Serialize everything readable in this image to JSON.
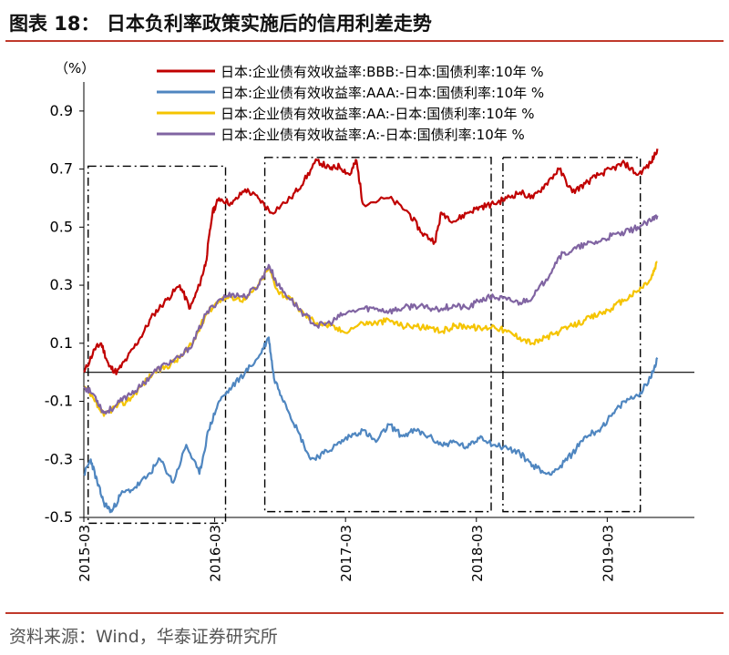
{
  "header": {
    "title": "图表 18：  日本负利率政策实施后的信用利差走势"
  },
  "footer": {
    "source": "资料来源：Wind，华泰证券研究所"
  },
  "colors": {
    "bbb": "#c00000",
    "aaa": "#4f86c0",
    "aa": "#f5c400",
    "a": "#8064a2",
    "rule": "#c0392b"
  },
  "chart_data": {
    "type": "line",
    "ylabel": "（%）",
    "ylim": [
      -0.5,
      1.0
    ],
    "yticks": [
      0.9,
      0.7,
      0.5,
      0.3,
      0.1,
      -0.1,
      -0.3,
      -0.5
    ],
    "ytick_labels": [
      "0.9",
      "0.7",
      "0.5",
      "0.3",
      "0.1",
      "-0.1",
      "-0.3",
      "-0.5"
    ],
    "xlim": [
      2015.167,
      2019.833
    ],
    "xticks": [
      2015.167,
      2016.167,
      2017.167,
      2018.167,
      2019.167
    ],
    "xtick_labels": [
      "2015-03",
      "2016-03",
      "2017-03",
      "2018-03",
      "2019-03"
    ],
    "zero_line": 0,
    "highlight_periods": [
      {
        "x0": 2015.2,
        "x1": 2016.25,
        "y0": -0.52,
        "y1": 0.71
      },
      {
        "x0": 2016.55,
        "x1": 2018.28,
        "y0": -0.48,
        "y1": 0.74
      },
      {
        "x0": 2018.37,
        "x1": 2019.42,
        "y0": -0.48,
        "y1": 0.74
      }
    ],
    "series": [
      {
        "name": "日本:企业债有效收益率:BBB:-日本:国债利率:10年 %",
        "key": "bbb",
        "x": [
          2015.17,
          2015.25,
          2015.3,
          2015.36,
          2015.42,
          2015.5,
          2015.6,
          2015.7,
          2015.8,
          2015.9,
          2015.98,
          2016.05,
          2016.1,
          2016.15,
          2016.2,
          2016.3,
          2016.4,
          2016.5,
          2016.6,
          2016.75,
          2016.85,
          2016.95,
          2017.05,
          2017.12,
          2017.2,
          2017.25,
          2017.3,
          2017.5,
          2017.65,
          2017.75,
          2017.85,
          2017.9,
          2018.0,
          2018.1,
          2018.2,
          2018.3,
          2018.4,
          2018.5,
          2018.6,
          2018.7,
          2018.8,
          2018.9,
          2019.0,
          2019.1,
          2019.2,
          2019.3,
          2019.4,
          2019.5,
          2019.55
        ],
        "values": [
          0.0,
          0.08,
          0.1,
          0.02,
          0.0,
          0.05,
          0.12,
          0.2,
          0.25,
          0.3,
          0.22,
          0.3,
          0.38,
          0.55,
          0.6,
          0.58,
          0.63,
          0.6,
          0.55,
          0.6,
          0.66,
          0.73,
          0.7,
          0.71,
          0.68,
          0.73,
          0.58,
          0.6,
          0.55,
          0.48,
          0.45,
          0.55,
          0.52,
          0.55,
          0.57,
          0.58,
          0.6,
          0.62,
          0.6,
          0.65,
          0.7,
          0.62,
          0.65,
          0.68,
          0.7,
          0.72,
          0.68,
          0.72,
          0.77
        ]
      },
      {
        "name": "日本:企业债有效收益率:AAA:-日本:国债利率:10年 %",
        "key": "aaa",
        "x": [
          2015.17,
          2015.22,
          2015.27,
          2015.32,
          2015.38,
          2015.45,
          2015.55,
          2015.65,
          2015.75,
          2015.85,
          2015.95,
          2016.05,
          2016.12,
          2016.2,
          2016.3,
          2016.4,
          2016.5,
          2016.58,
          2016.62,
          2016.7,
          2016.8,
          2016.9,
          2017.0,
          2017.1,
          2017.2,
          2017.3,
          2017.4,
          2017.5,
          2017.6,
          2017.7,
          2017.8,
          2017.9,
          2018.0,
          2018.1,
          2018.2,
          2018.3,
          2018.4,
          2018.5,
          2018.6,
          2018.7,
          2018.8,
          2018.9,
          2019.0,
          2019.1,
          2019.2,
          2019.3,
          2019.4,
          2019.5,
          2019.55
        ],
        "values": [
          -0.35,
          -0.3,
          -0.38,
          -0.45,
          -0.48,
          -0.42,
          -0.4,
          -0.36,
          -0.3,
          -0.38,
          -0.25,
          -0.35,
          -0.2,
          -0.1,
          -0.05,
          0.0,
          0.05,
          0.12,
          -0.02,
          -0.1,
          -0.2,
          -0.3,
          -0.28,
          -0.25,
          -0.22,
          -0.2,
          -0.24,
          -0.18,
          -0.22,
          -0.2,
          -0.22,
          -0.25,
          -0.24,
          -0.26,
          -0.22,
          -0.25,
          -0.26,
          -0.28,
          -0.32,
          -0.35,
          -0.33,
          -0.28,
          -0.22,
          -0.2,
          -0.15,
          -0.1,
          -0.08,
          -0.02,
          0.05
        ]
      },
      {
        "name": "日本:企业债有效收益率:AA:-日本:国债利率:10年 %",
        "key": "aa",
        "x": [
          2015.17,
          2015.25,
          2015.32,
          2015.4,
          2015.5,
          2015.6,
          2015.7,
          2015.8,
          2015.9,
          2016.0,
          2016.1,
          2016.2,
          2016.3,
          2016.4,
          2016.5,
          2016.58,
          2016.65,
          2016.75,
          2016.85,
          2016.95,
          2017.05,
          2017.15,
          2017.3,
          2017.4,
          2017.5,
          2017.6,
          2017.7,
          2017.8,
          2017.9,
          2018.0,
          2018.1,
          2018.2,
          2018.3,
          2018.4,
          2018.5,
          2018.6,
          2018.7,
          2018.8,
          2018.9,
          2019.0,
          2019.1,
          2019.2,
          2019.3,
          2019.4,
          2019.5,
          2019.55
        ],
        "values": [
          -0.05,
          -0.1,
          -0.15,
          -0.12,
          -0.1,
          -0.05,
          0.0,
          0.02,
          0.05,
          0.1,
          0.2,
          0.25,
          0.26,
          0.25,
          0.3,
          0.36,
          0.28,
          0.25,
          0.2,
          0.17,
          0.16,
          0.14,
          0.17,
          0.17,
          0.18,
          0.16,
          0.16,
          0.15,
          0.14,
          0.16,
          0.16,
          0.15,
          0.16,
          0.14,
          0.12,
          0.1,
          0.12,
          0.14,
          0.16,
          0.18,
          0.2,
          0.22,
          0.25,
          0.28,
          0.32,
          0.38
        ]
      },
      {
        "name": "日本:企业债有效收益率:A:-日本:国债利率:10年 %",
        "key": "a",
        "x": [
          2015.17,
          2015.25,
          2015.32,
          2015.4,
          2015.5,
          2015.6,
          2015.7,
          2015.8,
          2015.9,
          2016.0,
          2016.1,
          2016.2,
          2016.3,
          2016.4,
          2016.5,
          2016.58,
          2016.65,
          2016.75,
          2016.85,
          2016.95,
          2017.05,
          2017.15,
          2017.3,
          2017.4,
          2017.5,
          2017.6,
          2017.7,
          2017.8,
          2017.9,
          2018.0,
          2018.1,
          2018.2,
          2018.3,
          2018.4,
          2018.5,
          2018.6,
          2018.7,
          2018.8,
          2018.9,
          2019.0,
          2019.1,
          2019.2,
          2019.3,
          2019.4,
          2019.5,
          2019.55
        ],
        "values": [
          -0.05,
          -0.08,
          -0.14,
          -0.12,
          -0.08,
          -0.05,
          0.0,
          0.03,
          0.05,
          0.1,
          0.2,
          0.25,
          0.27,
          0.26,
          0.3,
          0.37,
          0.3,
          0.25,
          0.2,
          0.16,
          0.17,
          0.2,
          0.22,
          0.22,
          0.21,
          0.22,
          0.23,
          0.22,
          0.22,
          0.23,
          0.22,
          0.25,
          0.26,
          0.25,
          0.24,
          0.26,
          0.32,
          0.4,
          0.42,
          0.44,
          0.45,
          0.47,
          0.48,
          0.5,
          0.52,
          0.54
        ]
      }
    ]
  }
}
